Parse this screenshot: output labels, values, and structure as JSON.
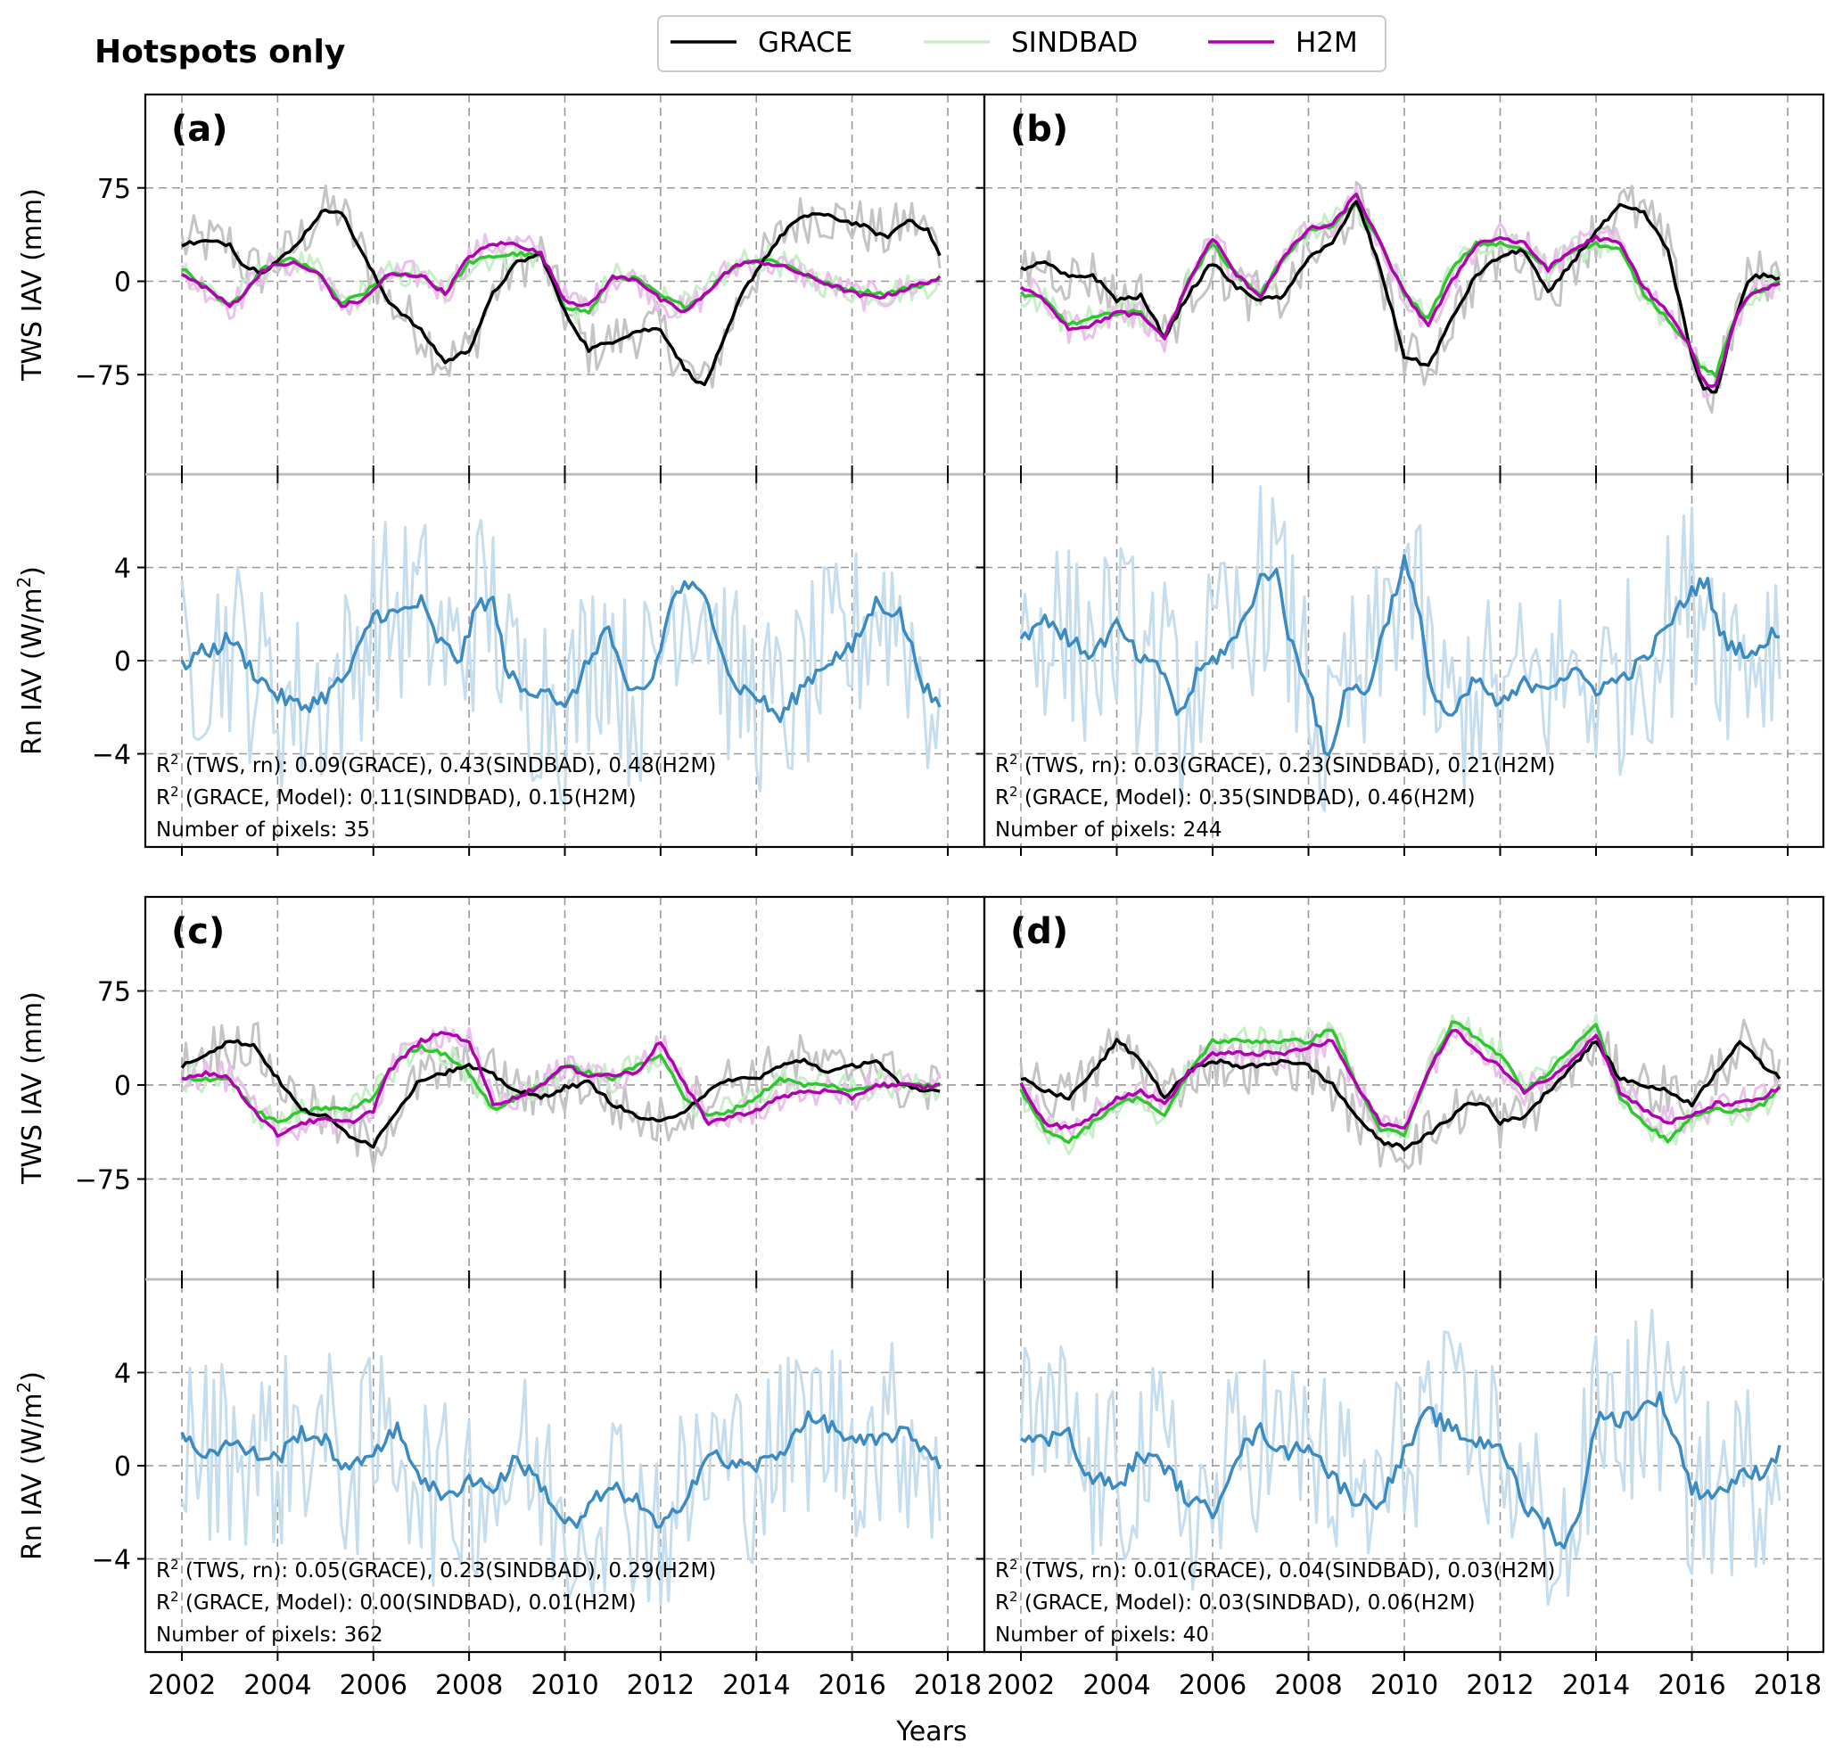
{
  "figure": {
    "title": "Hotspots only",
    "xlabel": "Years",
    "legend": [
      {
        "label": "GRACE",
        "color": "#000000"
      },
      {
        "label": "SINDBAD",
        "color": "#c8f0c8"
      },
      {
        "label": "H2M",
        "color": "#b000b0"
      }
    ]
  },
  "chart_data": {
    "type": "line",
    "x_ticks": [
      "2002",
      "2004",
      "2006",
      "2008",
      "2010",
      "2012",
      "2014",
      "2016",
      "2018"
    ],
    "xlim": [
      2001.5,
      2018.4
    ],
    "tws_axis": {
      "ylabel": "TWS IAV (mm)",
      "yticks": [
        "75",
        "0",
        "−75"
      ],
      "ytick_values": [
        75,
        0,
        -75
      ],
      "ylim": [
        -155,
        150
      ]
    },
    "rn_axis": {
      "ylabel": "Rn IAV (W/m²)",
      "ylabel_main": "Rn IAV (W/m",
      "ylabel_sup": "2",
      "ylabel_end": ")",
      "yticks": [
        "4",
        "0",
        "−4"
      ],
      "ytick_values": [
        4,
        0,
        -4
      ],
      "ylim": [
        -8,
        8
      ]
    },
    "colors": {
      "grace": "#000000",
      "grace_raw": "#c4c4c4",
      "sindbad": "#2ec82e",
      "sindbad_raw": "#c8f0c8",
      "h2m": "#b000b0",
      "h2m_raw": "#ecc0ec",
      "rn": "#3b8bc2",
      "rn_raw": "#c6ddee"
    },
    "panels": [
      {
        "label": "(a)",
        "annotation": {
          "line1": {
            "prefix": "R",
            "sup": "2",
            "text": " (TWS, rn): 0.09(GRACE), 0.43(SINDBAD), 0.48(H2M)"
          },
          "line2": {
            "prefix": "R",
            "sup": "2",
            "text": " (GRACE, Model): 0.11(SINDBAD), 0.15(H2M)"
          },
          "line3": "Number of pixels: 35"
        },
        "tws": {
          "x": [
            2002.0,
            2002.5,
            2003.0,
            2003.3,
            2003.7,
            2004.3,
            2004.9,
            2005.3,
            2005.8,
            2006.3,
            2007.0,
            2007.5,
            2008.0,
            2008.5,
            2009.0,
            2009.5,
            2010.0,
            2010.5,
            2011.0,
            2011.5,
            2012.0,
            2012.5,
            2012.9,
            2013.3,
            2013.7,
            2014.2,
            2014.7,
            2015.2,
            2015.7,
            2016.2,
            2016.7,
            2017.2,
            2017.6,
            2017.9
          ],
          "grace": [
            30,
            32,
            30,
            12,
            8,
            25,
            55,
            58,
            20,
            -15,
            -40,
            -65,
            -55,
            -10,
            15,
            22,
            -25,
            -55,
            -48,
            -40,
            -38,
            -70,
            -85,
            -50,
            -10,
            20,
            45,
            55,
            50,
            45,
            35,
            50,
            40,
            15
          ],
          "sindbad": [
            10,
            -5,
            -20,
            -10,
            10,
            18,
            5,
            -18,
            -10,
            5,
            5,
            -10,
            15,
            20,
            22,
            20,
            -20,
            -25,
            3,
            2,
            -12,
            -20,
            -12,
            5,
            15,
            18,
            12,
            2,
            -5,
            -8,
            -10,
            -5,
            -2,
            3
          ],
          "h2m": [
            5,
            -5,
            -20,
            -10,
            10,
            15,
            5,
            -20,
            -15,
            5,
            5,
            -10,
            20,
            30,
            30,
            22,
            -15,
            -20,
            3,
            2,
            -15,
            -25,
            -12,
            5,
            15,
            15,
            10,
            2,
            -5,
            -12,
            -12,
            -5,
            0,
            3
          ]
        },
        "rn": {
          "x": [
            2002.0,
            2002.3,
            2002.7,
            2003.0,
            2003.5,
            2004.0,
            2004.5,
            2005.0,
            2005.5,
            2006.0,
            2006.5,
            2007.0,
            2007.3,
            2007.8,
            2008.2,
            2008.5,
            2008.8,
            2009.2,
            2009.6,
            2010.0,
            2010.5,
            2010.9,
            2011.3,
            2011.8,
            2012.3,
            2012.6,
            2013.0,
            2013.5,
            2014.0,
            2014.5,
            2015.0,
            2015.5,
            2016.0,
            2016.5,
            2017.0,
            2017.5,
            2017.9
          ],
          "values": [
            -0.3,
            0.3,
            0.5,
            1.0,
            -0.5,
            -1.5,
            -2.0,
            -1.5,
            -0.5,
            2.0,
            2.0,
            2.5,
            1.0,
            0.0,
            2.5,
            2.5,
            -0.5,
            -1.5,
            -1.0,
            -2.2,
            0.0,
            1.5,
            -1.5,
            -1.0,
            3.0,
            3.2,
            2.5,
            -1.0,
            -1.5,
            -2.5,
            -1.0,
            0.0,
            0.5,
            2.5,
            2.0,
            -1.0,
            -2.5
          ]
        }
      },
      {
        "label": "(b)",
        "annotation": {
          "line1": {
            "prefix": "R",
            "sup": "2",
            "text": " (TWS, rn): 0.03(GRACE), 0.23(SINDBAD), 0.21(H2M)"
          },
          "line2": {
            "prefix": "R",
            "sup": "2",
            "text": " (GRACE, Model): 0.35(SINDBAD), 0.46(H2M)"
          },
          "line3": "Number of pixels: 244"
        },
        "tws": {
          "x": [
            2002.0,
            2002.5,
            2003.0,
            2003.5,
            2004.0,
            2004.5,
            2005.0,
            2005.5,
            2006.0,
            2006.5,
            2007.0,
            2007.5,
            2008.0,
            2008.5,
            2009.0,
            2009.5,
            2010.0,
            2010.5,
            2011.0,
            2011.5,
            2012.0,
            2012.5,
            2013.0,
            2013.5,
            2014.0,
            2014.5,
            2015.0,
            2015.5,
            2016.0,
            2016.2,
            2016.5,
            2016.9,
            2017.2,
            2017.6,
            2017.9
          ],
          "grace": [
            10,
            15,
            3,
            5,
            -15,
            -12,
            -45,
            -10,
            15,
            -5,
            -15,
            -12,
            20,
            30,
            65,
            10,
            -60,
            -68,
            -30,
            5,
            20,
            25,
            -10,
            15,
            40,
            60,
            55,
            25,
            -60,
            -85,
            -90,
            -30,
            3,
            5,
            0
          ],
          "sindbad": [
            -10,
            -15,
            -35,
            -30,
            -25,
            -25,
            -45,
            0,
            30,
            5,
            -10,
            20,
            40,
            45,
            62,
            30,
            -10,
            -30,
            10,
            30,
            30,
            25,
            10,
            25,
            30,
            25,
            -10,
            -30,
            -55,
            -70,
            -75,
            -30,
            -10,
            -5,
            0
          ],
          "h2m": [
            -5,
            -15,
            -38,
            -35,
            -25,
            -28,
            -45,
            0,
            35,
            5,
            -12,
            20,
            42,
            45,
            70,
            30,
            -10,
            -35,
            0,
            30,
            35,
            30,
            10,
            25,
            35,
            30,
            -5,
            -25,
            -55,
            -80,
            -85,
            -30,
            -10,
            -5,
            0
          ]
        },
        "rn": {
          "x": [
            2002.0,
            2002.3,
            2002.6,
            2003.0,
            2003.5,
            2004.0,
            2004.5,
            2005.0,
            2005.3,
            2005.7,
            2006.0,
            2006.5,
            2007.0,
            2007.3,
            2007.6,
            2008.0,
            2008.4,
            2008.8,
            2009.2,
            2009.6,
            2010.0,
            2010.3,
            2010.6,
            2011.0,
            2011.5,
            2012.0,
            2012.5,
            2013.0,
            2013.5,
            2014.0,
            2014.5,
            2015.0,
            2015.5,
            2016.0,
            2016.3,
            2016.6,
            2017.0,
            2017.4,
            2017.8,
            2017.9
          ],
          "values": [
            1.0,
            1.5,
            1.8,
            0.8,
            0.3,
            1.5,
            0.0,
            -0.5,
            -2.5,
            -0.5,
            0.0,
            1.0,
            3.5,
            4.0,
            1.0,
            -1.0,
            -4.5,
            -1.0,
            -1.5,
            1.5,
            4.3,
            2.0,
            -1.5,
            -2.5,
            -0.8,
            -2.0,
            -1.0,
            -1.0,
            -0.5,
            -1.2,
            -0.8,
            0.0,
            1.5,
            3.0,
            3.5,
            1.0,
            0.5,
            0.3,
            1.5,
            0.5
          ]
        }
      },
      {
        "label": "(c)",
        "annotation": {
          "line1": {
            "prefix": "R",
            "sup": "2",
            "text": " (TWS, rn): 0.05(GRACE), 0.23(SINDBAD), 0.29(H2M)"
          },
          "line2": {
            "prefix": "R",
            "sup": "2",
            "text": " (GRACE, Model): 0.00(SINDBAD), 0.01(H2M)"
          },
          "line3": "Number of pixels: 362"
        },
        "tws": {
          "x": [
            2002.0,
            2002.5,
            2003.0,
            2003.5,
            2004.0,
            2004.5,
            2005.0,
            2005.5,
            2006.0,
            2006.3,
            2006.7,
            2007.0,
            2007.5,
            2008.0,
            2008.5,
            2009.0,
            2009.5,
            2010.0,
            2010.5,
            2011.0,
            2011.5,
            2012.0,
            2012.5,
            2013.0,
            2013.5,
            2014.0,
            2014.5,
            2015.0,
            2015.5,
            2016.0,
            2016.5,
            2017.0,
            2017.5,
            2017.9
          ],
          "grace": [
            15,
            25,
            35,
            32,
            5,
            -20,
            -25,
            -40,
            -48,
            -30,
            -10,
            5,
            10,
            15,
            8,
            -5,
            -10,
            -2,
            2,
            -15,
            -25,
            -30,
            -20,
            -5,
            5,
            5,
            15,
            20,
            10,
            15,
            20,
            0,
            -5,
            -3
          ],
          "sindbad": [
            5,
            5,
            5,
            -20,
            -30,
            -22,
            -18,
            -20,
            -10,
            10,
            25,
            30,
            25,
            10,
            -20,
            -10,
            0,
            15,
            10,
            5,
            15,
            25,
            -10,
            -25,
            -20,
            -10,
            5,
            0,
            0,
            -5,
            0,
            0,
            0,
            0
          ],
          "h2m": [
            5,
            10,
            5,
            -20,
            -40,
            -30,
            -28,
            -30,
            -20,
            10,
            25,
            35,
            42,
            35,
            -15,
            -10,
            0,
            15,
            8,
            8,
            10,
            35,
            0,
            -30,
            -25,
            -20,
            -10,
            -5,
            -5,
            -10,
            0,
            0,
            -2,
            0
          ]
        },
        "rn": {
          "x": [
            2002.0,
            2002.5,
            2003.0,
            2003.5,
            2004.0,
            2004.5,
            2005.0,
            2005.5,
            2006.0,
            2006.5,
            2007.0,
            2007.5,
            2008.0,
            2008.5,
            2009.0,
            2009.5,
            2010.0,
            2010.3,
            2010.6,
            2011.0,
            2011.5,
            2012.0,
            2012.3,
            2012.6,
            2013.0,
            2013.5,
            2014.0,
            2014.5,
            2015.0,
            2015.5,
            2016.0,
            2016.5,
            2017.0,
            2017.5,
            2017.9
          ],
          "values": [
            1.2,
            0.5,
            1.0,
            0.5,
            0.3,
            1.5,
            1.0,
            -0.3,
            0.7,
            1.5,
            -0.5,
            -1.5,
            -0.5,
            -1.0,
            0.3,
            -0.8,
            -2.5,
            -2.5,
            -1.5,
            -1.0,
            -1.5,
            -2.8,
            -2.0,
            -1.0,
            0.5,
            0.0,
            0.0,
            0.5,
            2.0,
            1.8,
            1.0,
            1.0,
            1.5,
            0.8,
            0.0
          ]
        }
      },
      {
        "label": "(d)",
        "annotation": {
          "line1": {
            "prefix": "R",
            "sup": "2",
            "text": " (TWS, rn): 0.01(GRACE), 0.04(SINDBAD), 0.03(H2M)"
          },
          "line2": {
            "prefix": "R",
            "sup": "2",
            "text": " (GRACE, Model): 0.03(SINDBAD), 0.06(H2M)"
          },
          "line3": "Number of pixels: 40"
        },
        "tws": {
          "x": [
            2002.0,
            2002.5,
            2003.0,
            2003.5,
            2004.0,
            2004.5,
            2005.0,
            2005.5,
            2006.0,
            2006.5,
            2007.0,
            2007.5,
            2008.0,
            2008.5,
            2009.0,
            2009.5,
            2010.0,
            2010.5,
            2011.0,
            2011.3,
            2011.7,
            2012.0,
            2012.5,
            2013.0,
            2013.5,
            2014.0,
            2014.5,
            2015.0,
            2015.5,
            2016.0,
            2016.5,
            2017.0,
            2017.5,
            2017.9
          ],
          "grace": [
            5,
            -5,
            -10,
            10,
            35,
            20,
            -10,
            10,
            20,
            15,
            15,
            20,
            15,
            0,
            -25,
            -45,
            -50,
            -40,
            -25,
            -15,
            -15,
            -30,
            -25,
            -5,
            15,
            35,
            5,
            0,
            -5,
            -15,
            10,
            35,
            15,
            5
          ],
          "sindbad": [
            -5,
            -35,
            -45,
            -30,
            -15,
            -10,
            -25,
            10,
            35,
            35,
            35,
            35,
            35,
            45,
            0,
            -35,
            -40,
            10,
            50,
            45,
            30,
            25,
            -5,
            10,
            30,
            50,
            -10,
            -30,
            -45,
            -25,
            -20,
            -20,
            -15,
            0
          ],
          "h2m": [
            0,
            -30,
            -35,
            -25,
            -10,
            -5,
            -15,
            10,
            25,
            25,
            25,
            25,
            30,
            35,
            0,
            -30,
            -35,
            10,
            45,
            35,
            20,
            15,
            -5,
            5,
            20,
            40,
            -5,
            -20,
            -30,
            -25,
            -15,
            -15,
            -10,
            0
          ]
        },
        "rn": {
          "x": [
            2002.0,
            2002.3,
            2002.7,
            2003.0,
            2003.3,
            2003.6,
            2004.0,
            2004.5,
            2005.0,
            2005.5,
            2006.0,
            2006.5,
            2007.0,
            2007.5,
            2008.0,
            2008.5,
            2009.0,
            2009.5,
            2010.0,
            2010.5,
            2011.0,
            2011.5,
            2012.0,
            2012.5,
            2013.0,
            2013.3,
            2013.6,
            2014.0,
            2014.5,
            2015.0,
            2015.3,
            2015.7,
            2016.0,
            2016.5,
            2017.0,
            2017.5,
            2017.9
          ],
          "values": [
            1.5,
            1.0,
            1.2,
            1.8,
            -0.5,
            -0.5,
            -1.0,
            0.5,
            0.0,
            -1.5,
            -2.0,
            0.5,
            1.5,
            0.5,
            1.0,
            -0.5,
            -1.5,
            -1.5,
            0.5,
            2.3,
            1.5,
            1.0,
            1.0,
            -1.8,
            -2.5,
            -3.5,
            -2.5,
            2.0,
            2.0,
            2.5,
            3.0,
            1.0,
            -1.0,
            -1.2,
            -0.5,
            -0.2,
            0.8
          ]
        }
      }
    ]
  }
}
